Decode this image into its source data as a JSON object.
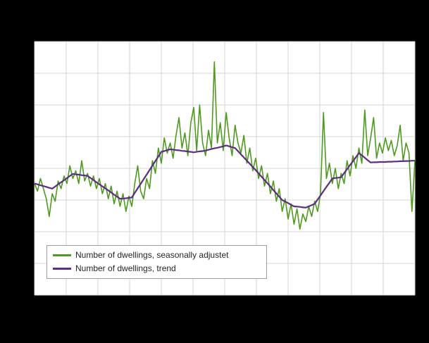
{
  "chart": {
    "background": "#000000",
    "plot_background": "#ffffff",
    "grid_color": "#d6d6d6"
  },
  "legend": {
    "items": [
      {
        "label": "Number of dwellings, seasonally adjustet",
        "color": "#4e9a20"
      },
      {
        "label": "Number of dwellings, trend",
        "color": "#5c2d82"
      }
    ]
  },
  "chart_data": {
    "type": "line",
    "title": "",
    "xlabel": "",
    "ylabel": "",
    "x": "monthly observations, index 0-129, left to right",
    "y_unit": "relative scale 0-100 (axis tick labels not visible in image)",
    "ylim": [
      0,
      100
    ],
    "grid": true,
    "legend_position": "bottom-left inside plot",
    "axes_note": "no axis tick labels or title are visible; plot surrounded by black margins",
    "series": [
      {
        "name": "Number of dwellings, seasonally adjustet",
        "color": "#4e9a20",
        "values": [
          44,
          41,
          46,
          42,
          38,
          31,
          40,
          37,
          45,
          42,
          47,
          44,
          51,
          46,
          49,
          44,
          53,
          45,
          48,
          43,
          47,
          42,
          46,
          40,
          44,
          38,
          43,
          36,
          41,
          35,
          40,
          33,
          39,
          35,
          44,
          51,
          41,
          38,
          46,
          42,
          53,
          48,
          58,
          52,
          62,
          56,
          60,
          54,
          63,
          70,
          58,
          64,
          55,
          68,
          74,
          57,
          75,
          60,
          55,
          65,
          58,
          92,
          60,
          68,
          57,
          72,
          62,
          55,
          67,
          60,
          56,
          63,
          52,
          58,
          49,
          54,
          46,
          51,
          43,
          48,
          40,
          45,
          37,
          42,
          33,
          38,
          30,
          36,
          28,
          34,
          26,
          32,
          29,
          35,
          31,
          37,
          33,
          40,
          72,
          46,
          52,
          44,
          50,
          42,
          48,
          44,
          53,
          47,
          55,
          50,
          58,
          52,
          73,
          55,
          62,
          70,
          54,
          60,
          56,
          62,
          57,
          61,
          55,
          59,
          67,
          53,
          60,
          56,
          33,
          53
        ]
      },
      {
        "name": "Number of dwellings, trend",
        "color": "#5c2d82",
        "values": [
          44,
          43.7,
          43.3,
          43,
          42.7,
          42.3,
          42,
          42.8,
          43.7,
          44.5,
          45.3,
          46.1,
          47,
          47.8,
          47.6,
          47.5,
          47.3,
          47.2,
          47,
          46.2,
          45.4,
          44.5,
          43.7,
          42.9,
          42.1,
          41.3,
          40.5,
          39.6,
          38.8,
          38,
          38.1,
          38.2,
          38.4,
          38.5,
          40.3,
          42.1,
          43.9,
          45.7,
          47.5,
          49.3,
          51.1,
          52.9,
          54.7,
          56.5,
          56.8,
          57.2,
          57.5,
          57.4,
          57.2,
          57.1,
          56.9,
          56.8,
          56.6,
          56.5,
          56.3,
          56.5,
          56.7,
          56.8,
          57,
          57.3,
          57.6,
          57.9,
          58.1,
          58.4,
          58.7,
          59,
          58.7,
          58.3,
          58,
          56.8,
          55.5,
          54.3,
          53,
          51.8,
          50.5,
          49.3,
          48,
          46.7,
          45.4,
          44.1,
          42.8,
          41.4,
          40.1,
          38.8,
          37.5,
          36.9,
          36.3,
          35.6,
          35,
          34.9,
          34.8,
          34.6,
          34.5,
          35,
          35.5,
          36,
          37.7,
          39.3,
          41,
          42.7,
          44.3,
          46,
          46.2,
          46.3,
          46.5,
          48.1,
          49.7,
          51.3,
          52.8,
          54.4,
          56,
          55.1,
          54.2,
          53.2,
          52.3,
          52.4,
          52.4,
          52.5,
          52.5,
          52.5,
          52.6,
          52.6,
          52.7,
          52.7,
          52.8,
          52.8,
          52.9,
          52.9,
          53,
          53
        ]
      }
    ]
  }
}
